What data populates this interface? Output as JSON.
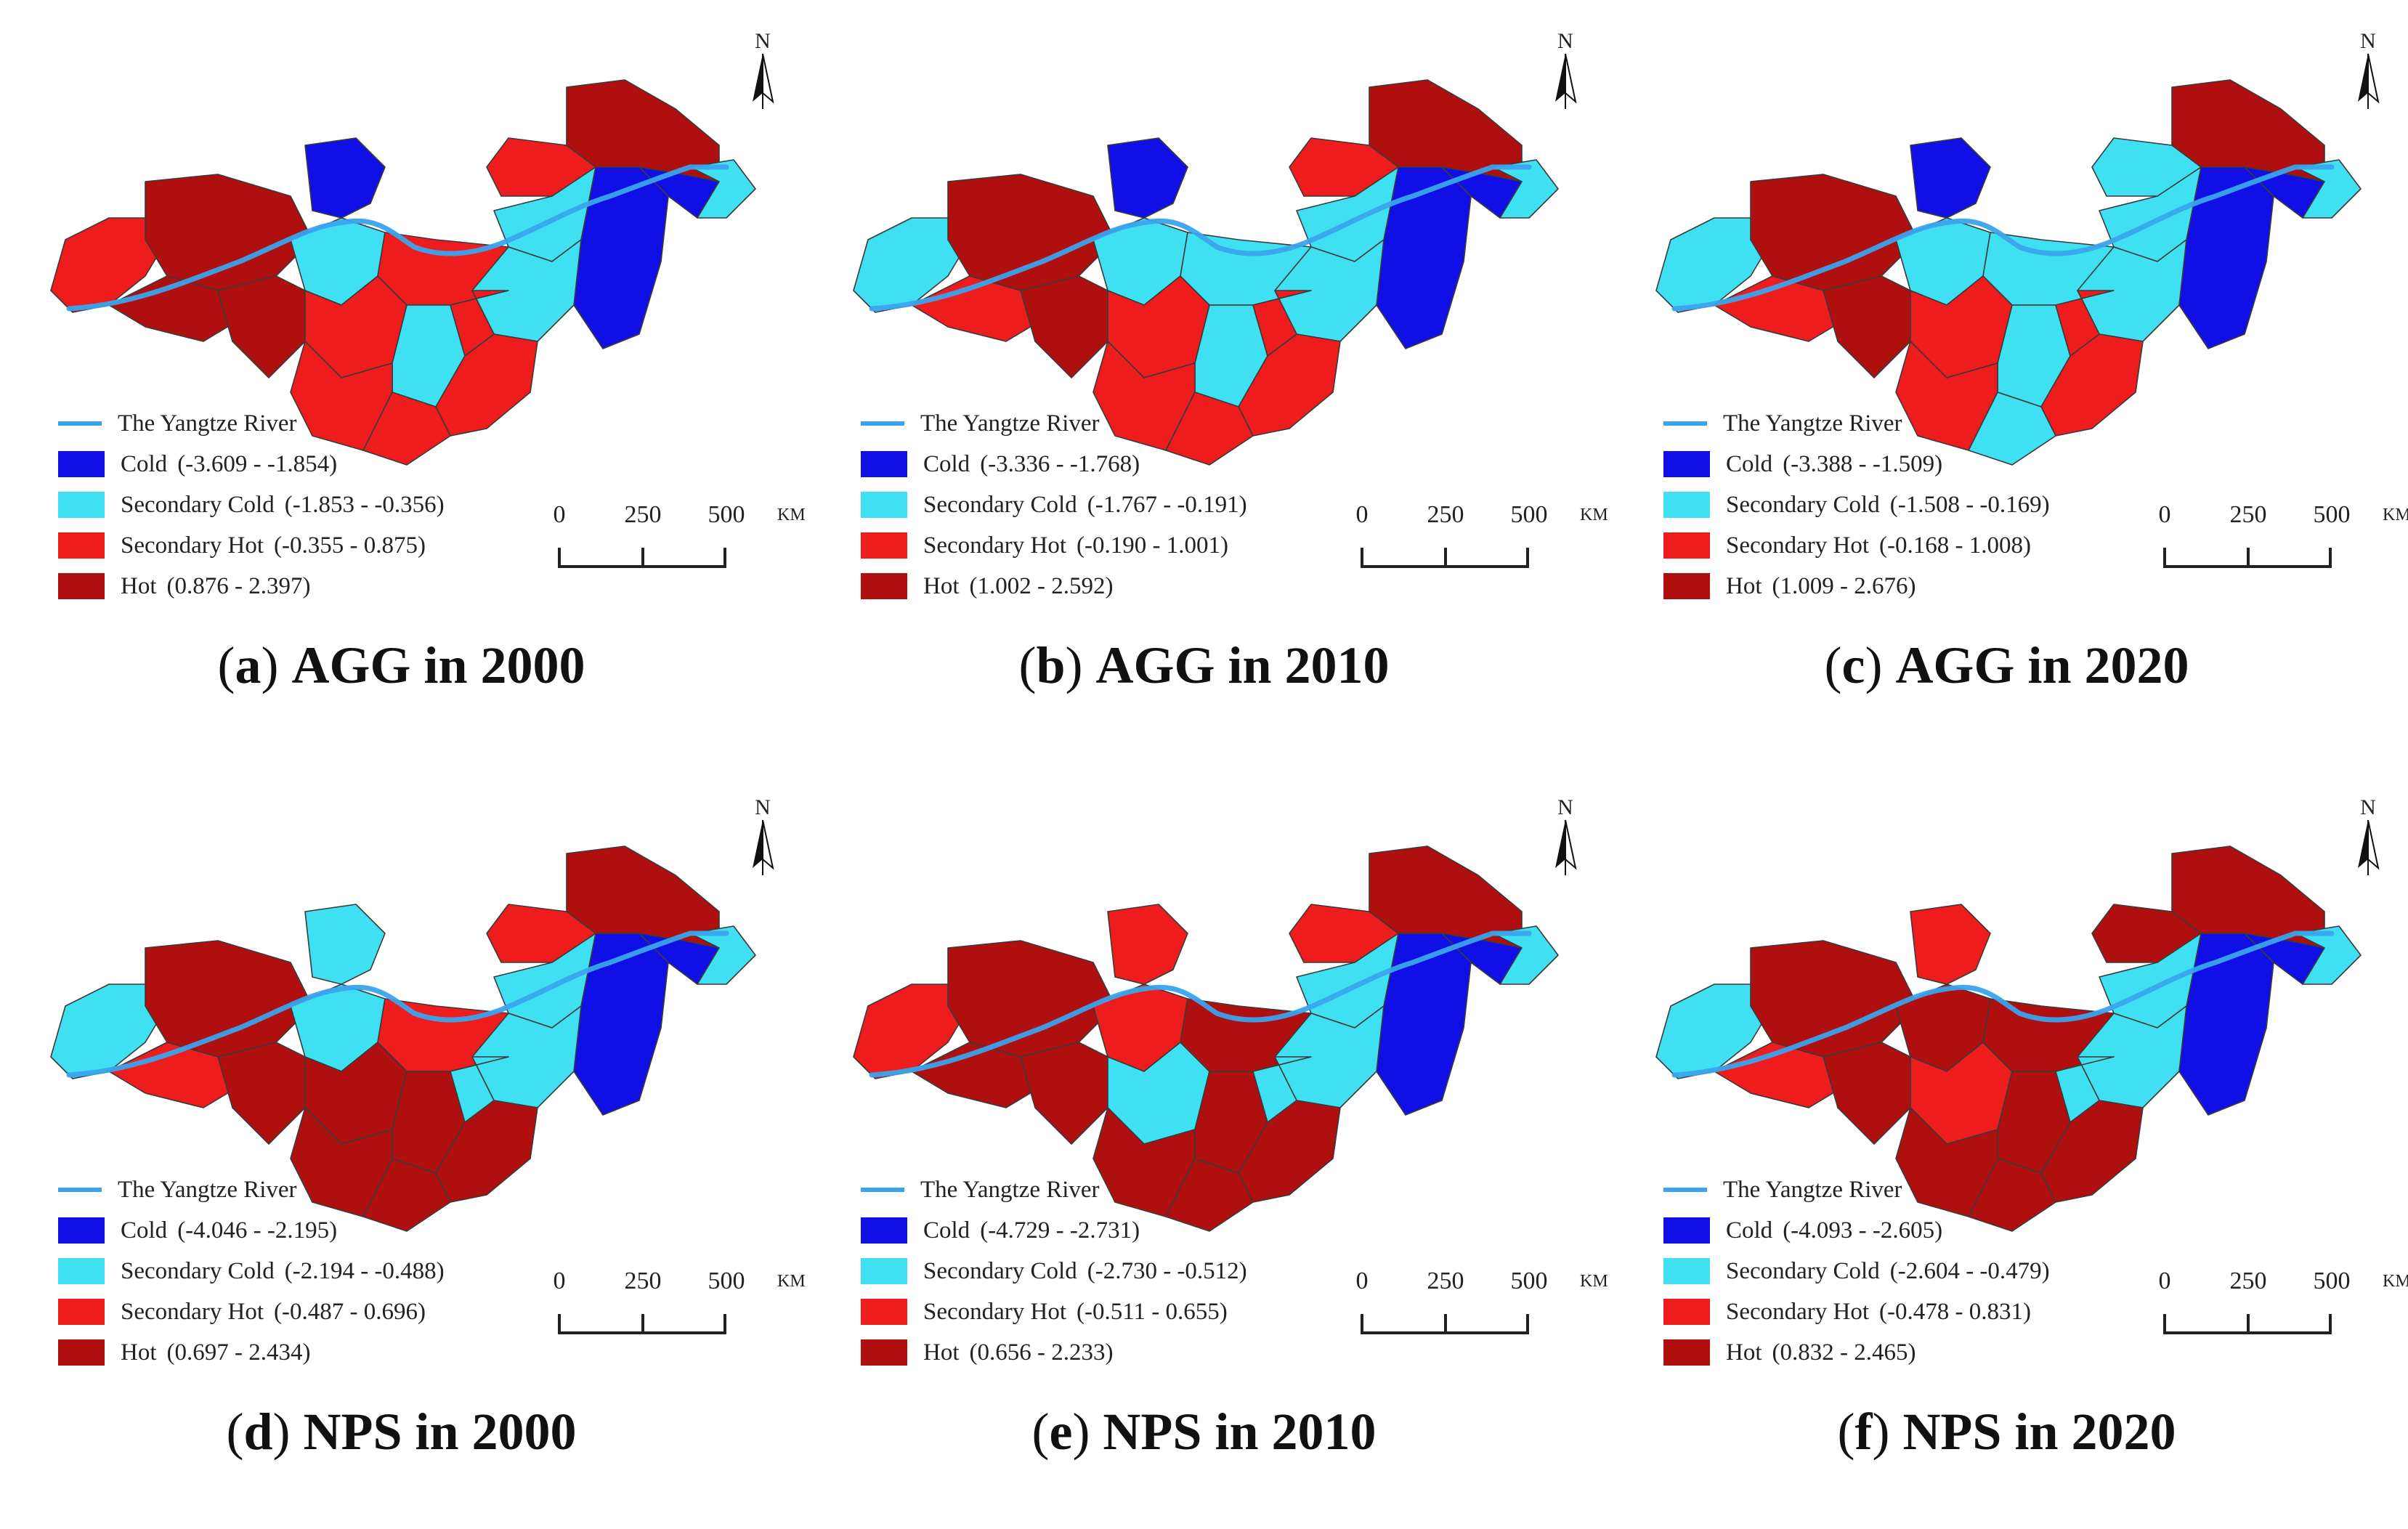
{
  "colors": {
    "cold": "#1010e6",
    "secondary_cold": "#3ee0f2",
    "secondary_hot": "#ee1c1c",
    "hot": "#b00f10",
    "river": "#3aa3ee"
  },
  "legend_static": {
    "river": "The Yangtze River",
    "cold": "Cold",
    "secondary_cold": "Secondary Cold",
    "secondary_hot": "Secondary Hot",
    "hot": "Hot"
  },
  "scale": {
    "ticks": [
      "0",
      "250",
      "500"
    ],
    "unit": "KM"
  },
  "north_label": "N",
  "panels": [
    {
      "letter": "a",
      "indicator": "AGG",
      "year": "2000",
      "in_word": "in",
      "ranges": {
        "cold": "(-3.609 - -1.854)",
        "secondary_cold": "(-1.853 - -0.356)",
        "secondary_hot": "(-0.355 - 0.875)",
        "hot": "(0.876 - 2.397)"
      },
      "regions": [
        "secondary_hot",
        "hot",
        "hot",
        "cold",
        "secondary_cold",
        "hot",
        "secondary_hot",
        "cold",
        "secondary_cold",
        "secondary_hot",
        "secondary_cold",
        "secondary_hot",
        "hot",
        "secondary_hot",
        "secondary_cold",
        "secondary_hot",
        "secondary_hot",
        "cold",
        "secondary_cold",
        "secondary_hot"
      ]
    },
    {
      "letter": "b",
      "indicator": "AGG",
      "year": "2010",
      "in_word": "in",
      "ranges": {
        "cold": "(-3.336 - -1.768)",
        "secondary_cold": "(-1.767 - -0.191)",
        "secondary_hot": "(-0.190 - 1.001)",
        "hot": "(1.002 - 2.592)"
      },
      "regions": [
        "secondary_cold",
        "hot",
        "secondary_hot",
        "cold",
        "secondary_cold",
        "hot",
        "secondary_hot",
        "cold",
        "secondary_cold",
        "secondary_cold",
        "secondary_cold",
        "secondary_hot",
        "hot",
        "secondary_hot",
        "secondary_cold",
        "secondary_hot",
        "secondary_hot",
        "cold",
        "secondary_cold",
        "secondary_hot"
      ]
    },
    {
      "letter": "c",
      "indicator": "AGG",
      "year": "2020",
      "in_word": "in",
      "ranges": {
        "cold": "(-3.388 - -1.509)",
        "secondary_cold": "(-1.508 - -0.169)",
        "secondary_hot": "(-0.168 - 1.008)",
        "hot": "(1.009 - 2.676)"
      },
      "regions": [
        "secondary_cold",
        "hot",
        "secondary_hot",
        "cold",
        "secondary_cold",
        "hot",
        "secondary_hot",
        "cold",
        "secondary_cold",
        "secondary_cold",
        "secondary_cold",
        "secondary_hot",
        "hot",
        "secondary_cold",
        "secondary_cold",
        "secondary_hot",
        "secondary_hot",
        "cold",
        "secondary_cold",
        "secondary_cold"
      ]
    },
    {
      "letter": "d",
      "indicator": "NPS",
      "year": "2000",
      "in_word": "in",
      "ranges": {
        "cold": "(-4.046 - -2.195)",
        "secondary_cold": "(-2.194 - -0.488)",
        "secondary_hot": "(-0.487 - 0.696)",
        "hot": "(0.697 - 2.434)"
      },
      "regions": [
        "secondary_cold",
        "hot",
        "secondary_hot",
        "secondary_cold",
        "secondary_cold",
        "hot",
        "hot",
        "cold",
        "secondary_cold",
        "secondary_hot",
        "hot",
        "hot",
        "hot",
        "secondary_hot",
        "secondary_cold",
        "hot",
        "secondary_cold",
        "cold",
        "secondary_cold",
        "hot"
      ]
    },
    {
      "letter": "e",
      "indicator": "NPS",
      "year": "2010",
      "in_word": "in",
      "ranges": {
        "cold": "(-4.729 - -2.731)",
        "secondary_cold": "(-2.730 - -0.512)",
        "secondary_hot": "(-0.511 - 0.655)",
        "hot": "(0.656 - 2.233)"
      },
      "regions": [
        "secondary_hot",
        "hot",
        "hot",
        "secondary_hot",
        "secondary_hot",
        "hot",
        "secondary_cold",
        "cold",
        "secondary_cold",
        "hot",
        "hot",
        "hot",
        "hot",
        "secondary_hot",
        "secondary_cold",
        "hot",
        "secondary_cold",
        "cold",
        "secondary_cold",
        "hot"
      ]
    },
    {
      "letter": "f",
      "indicator": "NPS",
      "year": "2020",
      "in_word": "in",
      "ranges": {
        "cold": "(-4.093 - -2.605)",
        "secondary_cold": "(-2.604 - -0.479)",
        "secondary_hot": "(-0.478 - 0.831)",
        "hot": "(0.832 - 2.465)"
      },
      "regions": [
        "secondary_cold",
        "hot",
        "secondary_hot",
        "secondary_hot",
        "hot",
        "hot",
        "secondary_hot",
        "cold",
        "secondary_cold",
        "hot",
        "hot",
        "hot",
        "hot",
        "hot",
        "secondary_cold",
        "hot",
        "secondary_cold",
        "cold",
        "secondary_cold",
        "hot"
      ]
    }
  ]
}
